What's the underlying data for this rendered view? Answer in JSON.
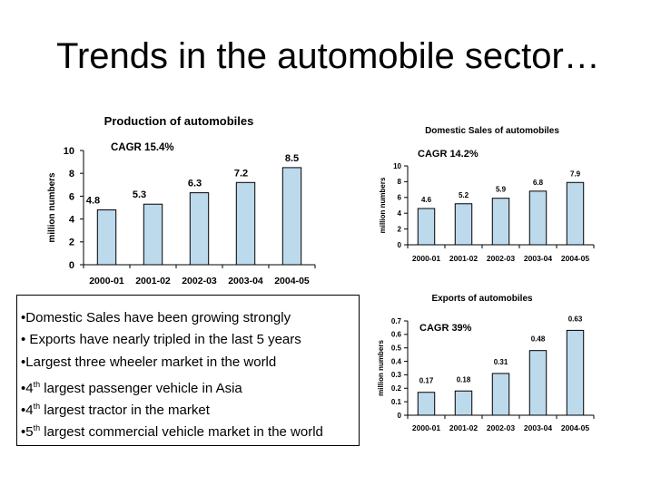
{
  "slide_title": "Trends in the automobile sector…",
  "colors": {
    "bar_fill": "#BDD9EC",
    "bar_stroke": "#000000",
    "axis": "#000000"
  },
  "chart_data": [
    {
      "id": "production",
      "type": "bar",
      "title": "Production of automobiles",
      "annotation": "CAGR 15.4%",
      "ylabel": "million numbers",
      "xlabel": "",
      "categories": [
        "2000-01",
        "2001-02",
        "2002-03",
        "2003-04",
        "2004-05"
      ],
      "values": [
        4.8,
        5.3,
        6.3,
        7.2,
        8.5
      ],
      "data_labels": [
        "4.8",
        "5.3",
        "6.3",
        "7.2",
        "8.5"
      ],
      "ylim": [
        0,
        10
      ],
      "yticks": [
        "0",
        "2",
        "4",
        "6",
        "8",
        "10"
      ],
      "grid": false,
      "legend": "none"
    },
    {
      "id": "domestic",
      "type": "bar",
      "title": "Domestic Sales of automobiles",
      "annotation": "CAGR 14.2%",
      "ylabel": "million numbers",
      "xlabel": "",
      "categories": [
        "2000-01",
        "2001-02",
        "2002-03",
        "2003-04",
        "2004-05"
      ],
      "values": [
        4.6,
        5.2,
        5.9,
        6.8,
        7.9
      ],
      "data_labels": [
        "4.6",
        "5.2",
        "5.9",
        "6.8",
        "7.9"
      ],
      "ylim": [
        0,
        10
      ],
      "yticks": [
        "0",
        "2",
        "4",
        "6",
        "8",
        "10"
      ],
      "grid": false,
      "legend": "none"
    },
    {
      "id": "exports",
      "type": "bar",
      "title": "Exports of automobiles",
      "annotation": "CAGR  39%",
      "ylabel": "million numbers",
      "xlabel": "",
      "categories": [
        "2000-01",
        "2001-02",
        "2002-03",
        "2003-04",
        "2004-05"
      ],
      "values": [
        0.17,
        0.18,
        0.31,
        0.48,
        0.63
      ],
      "data_labels": [
        "0.17",
        "0.18",
        "0.31",
        "0.48",
        "0.63"
      ],
      "ylim": [
        0,
        0.7
      ],
      "yticks": [
        "0",
        "0.1",
        "0.2",
        "0.3",
        "0.4",
        "0.5",
        "0.6",
        "0.7"
      ],
      "grid": false,
      "legend": "none"
    }
  ],
  "bullets": [
    {
      "marker": "•",
      "pre": "Domestic Sales have been growing strongly",
      "sup": "",
      "post": ""
    },
    {
      "marker": "•",
      "pre": " Exports have nearly tripled in the last 5 years",
      "sup": "",
      "post": ""
    },
    {
      "marker": "•",
      "pre": "Largest three wheeler market in the world",
      "sup": "",
      "post": ""
    },
    {
      "marker": "•",
      "pre": "4",
      "sup": "th",
      "post": " largest passenger vehicle in Asia"
    },
    {
      "marker": "•",
      "pre": "4",
      "sup": "th",
      "post": " largest tractor in the market"
    },
    {
      "marker": "•",
      "pre": "5",
      "sup": "th",
      "post": " largest commercial vehicle market in the world"
    }
  ]
}
